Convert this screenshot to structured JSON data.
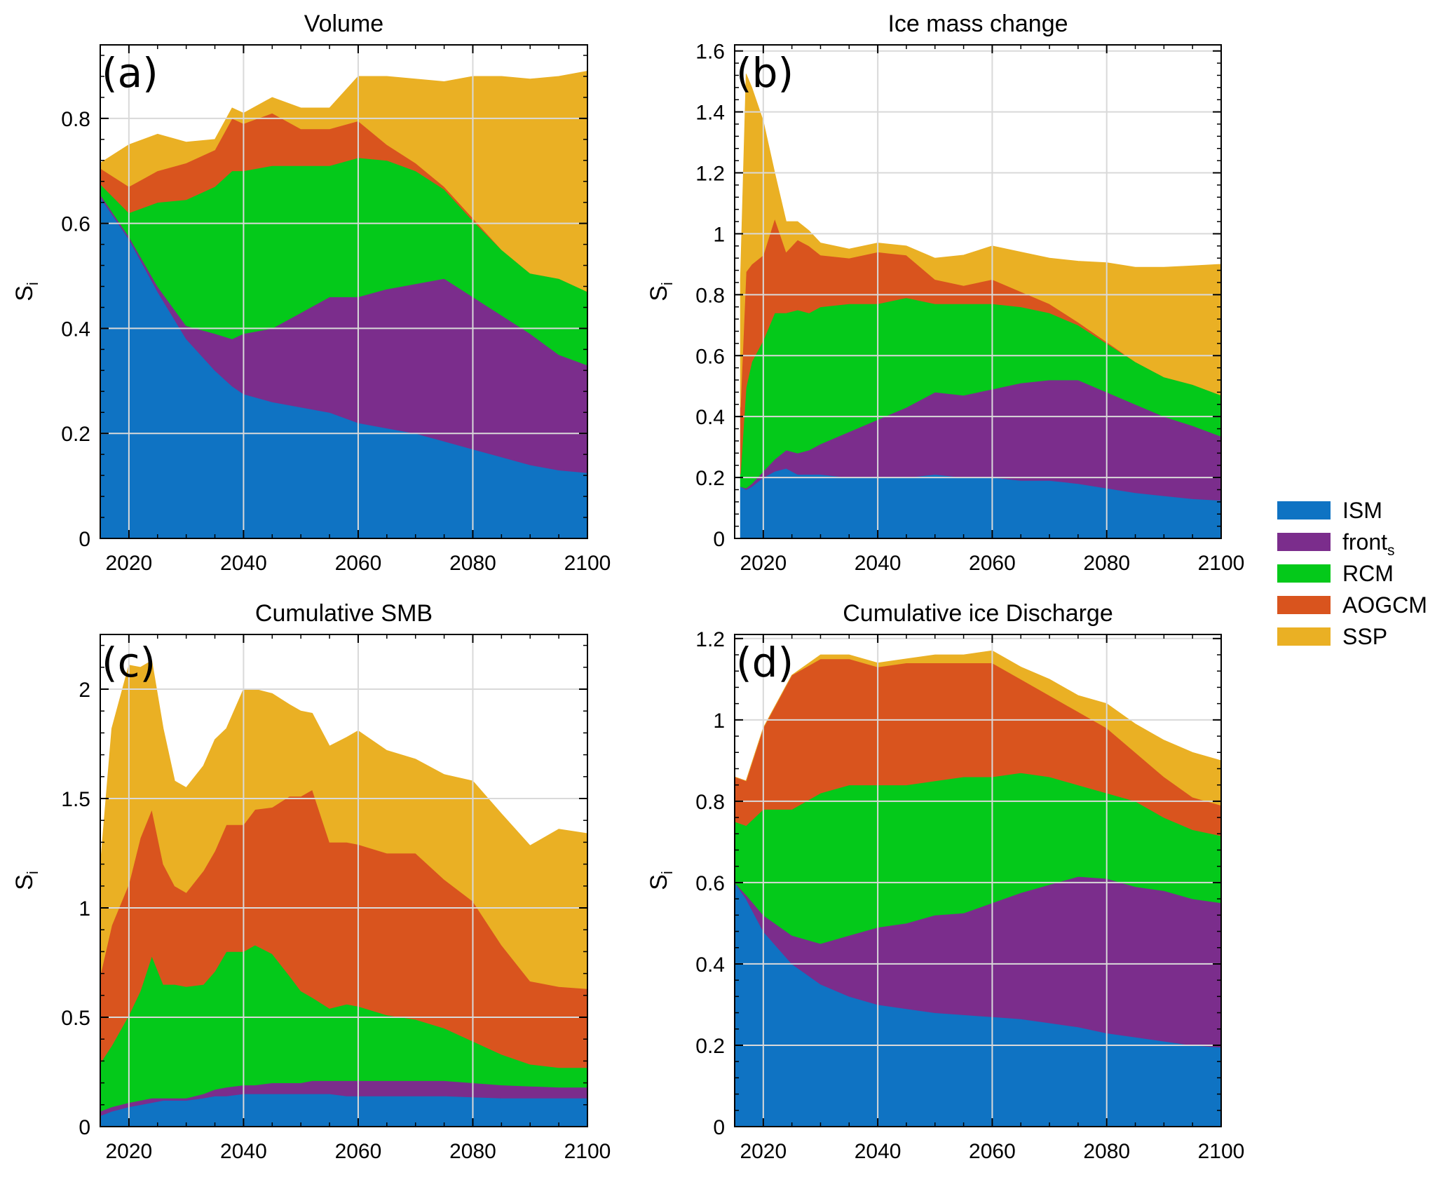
{
  "legend": {
    "items": [
      {
        "key": "ISM",
        "label": "ISM",
        "sub": "",
        "color": "#0f73c3"
      },
      {
        "key": "front",
        "label": "front",
        "sub": "s",
        "color": "#7b2d8c"
      },
      {
        "key": "RCM",
        "label": "RCM",
        "sub": "",
        "color": "#04c91a"
      },
      {
        "key": "AOGCM",
        "label": "AOGCM",
        "sub": "",
        "color": "#d9541e"
      },
      {
        "key": "SSP",
        "label": "SSP",
        "sub": "",
        "color": "#eab024"
      }
    ]
  },
  "chart_data": [
    {
      "type": "area",
      "stacked": true,
      "panel_label": "(a)",
      "title": "Volume",
      "ylabel": "S",
      "ylabel_sub": "i",
      "xlim": [
        2015,
        2100
      ],
      "ylim": [
        0,
        0.94
      ],
      "x_ticks": [
        "2020",
        "2040",
        "2060",
        "2080",
        "2100"
      ],
      "x_tick_values": [
        2020,
        2040,
        2060,
        2080,
        2100
      ],
      "y_ticks": [
        "0",
        "0.2",
        "0.4",
        "0.6",
        "0.8"
      ],
      "y_tick_values": [
        0,
        0.2,
        0.4,
        0.6,
        0.8
      ],
      "x": [
        2015,
        2020,
        2025,
        2030,
        2035,
        2038,
        2040,
        2045,
        2050,
        2055,
        2060,
        2065,
        2070,
        2075,
        2080,
        2085,
        2090,
        2095,
        2100
      ],
      "series": [
        {
          "name": "ISM",
          "values": [
            0.65,
            0.57,
            0.47,
            0.38,
            0.32,
            0.29,
            0.275,
            0.26,
            0.25,
            0.24,
            0.22,
            0.21,
            0.2,
            0.185,
            0.17,
            0.155,
            0.14,
            0.13,
            0.125
          ]
        },
        {
          "name": "front",
          "values": [
            0.005,
            0.005,
            0.01,
            0.025,
            0.07,
            0.09,
            0.115,
            0.14,
            0.18,
            0.22,
            0.24,
            0.265,
            0.285,
            0.31,
            0.29,
            0.27,
            0.25,
            0.22,
            0.205
          ]
        },
        {
          "name": "RCM",
          "values": [
            0.02,
            0.045,
            0.16,
            0.24,
            0.28,
            0.32,
            0.31,
            0.31,
            0.28,
            0.25,
            0.265,
            0.245,
            0.215,
            0.17,
            0.145,
            0.125,
            0.115,
            0.145,
            0.14
          ]
        },
        {
          "name": "AOGCM",
          "values": [
            0.03,
            0.05,
            0.06,
            0.07,
            0.07,
            0.1,
            0.09,
            0.1,
            0.07,
            0.07,
            0.07,
            0.03,
            0.015,
            0.005,
            0.005,
            0.0,
            0.0,
            0.0,
            0.0
          ]
        },
        {
          "name": "SSP",
          "values": [
            0.01,
            0.08,
            0.07,
            0.04,
            0.02,
            0.02,
            0.02,
            0.03,
            0.04,
            0.04,
            0.085,
            0.13,
            0.16,
            0.2,
            0.27,
            0.33,
            0.37,
            0.385,
            0.42
          ]
        }
      ]
    },
    {
      "type": "area",
      "stacked": true,
      "panel_label": "(b)",
      "title": "Ice mass change",
      "ylabel": "S",
      "ylabel_sub": "i",
      "xlim": [
        2015,
        2100
      ],
      "ylim": [
        0,
        1.62
      ],
      "x_ticks": [
        "2020",
        "2040",
        "2060",
        "2080",
        "2100"
      ],
      "x_tick_values": [
        2020,
        2040,
        2060,
        2080,
        2100
      ],
      "y_ticks": [
        "0",
        "0.2",
        "0.4",
        "0.6",
        "0.8",
        "1",
        "1.2",
        "1.4",
        "1.6"
      ],
      "y_tick_values": [
        0,
        0.2,
        0.4,
        0.6,
        0.8,
        1,
        1.2,
        1.4,
        1.6
      ],
      "x": [
        2016,
        2017,
        2018,
        2020,
        2022,
        2024,
        2026,
        2028,
        2030,
        2035,
        2040,
        2045,
        2050,
        2055,
        2060,
        2065,
        2070,
        2075,
        2080,
        2085,
        2090,
        2095,
        2100
      ],
      "series": [
        {
          "name": "ISM",
          "values": [
            0.17,
            0.16,
            0.17,
            0.2,
            0.22,
            0.23,
            0.21,
            0.21,
            0.21,
            0.2,
            0.2,
            0.2,
            0.21,
            0.2,
            0.2,
            0.19,
            0.19,
            0.18,
            0.165,
            0.15,
            0.14,
            0.13,
            0.125
          ]
        },
        {
          "name": "front",
          "values": [
            0.0,
            0.005,
            0.01,
            0.02,
            0.04,
            0.06,
            0.07,
            0.08,
            0.1,
            0.15,
            0.19,
            0.23,
            0.27,
            0.27,
            0.29,
            0.32,
            0.33,
            0.34,
            0.315,
            0.29,
            0.26,
            0.24,
            0.21
          ]
        },
        {
          "name": "RCM",
          "values": [
            0.04,
            0.33,
            0.4,
            0.43,
            0.48,
            0.45,
            0.47,
            0.45,
            0.45,
            0.42,
            0.38,
            0.36,
            0.29,
            0.3,
            0.28,
            0.25,
            0.22,
            0.18,
            0.16,
            0.14,
            0.13,
            0.135,
            0.135
          ]
        },
        {
          "name": "AOGCM",
          "values": [
            0.22,
            0.38,
            0.32,
            0.28,
            0.31,
            0.2,
            0.23,
            0.22,
            0.17,
            0.15,
            0.17,
            0.14,
            0.08,
            0.06,
            0.08,
            0.05,
            0.03,
            0.01,
            0.005,
            0.0,
            0.0,
            0.0,
            0.0
          ]
        },
        {
          "name": "SSP",
          "values": [
            0.42,
            0.65,
            0.58,
            0.44,
            0.15,
            0.1,
            0.06,
            0.05,
            0.04,
            0.03,
            0.03,
            0.03,
            0.07,
            0.1,
            0.11,
            0.13,
            0.15,
            0.2,
            0.26,
            0.31,
            0.36,
            0.39,
            0.43
          ]
        }
      ]
    },
    {
      "type": "area",
      "stacked": true,
      "panel_label": "(c)",
      "title": "Cumulative SMB",
      "ylabel": "S",
      "ylabel_sub": "i",
      "xlim": [
        2015,
        2100
      ],
      "ylim": [
        0,
        2.25
      ],
      "x_ticks": [
        "2020",
        "2040",
        "2060",
        "2080",
        "2100"
      ],
      "x_tick_values": [
        2020,
        2040,
        2060,
        2080,
        2100
      ],
      "y_ticks": [
        "0",
        "0.5",
        "1",
        "1.5",
        "2"
      ],
      "y_tick_values": [
        0,
        0.5,
        1,
        1.5,
        2
      ],
      "x": [
        2015,
        2017,
        2020,
        2022,
        2024,
        2026,
        2028,
        2030,
        2033,
        2035,
        2037,
        2040,
        2042,
        2045,
        2048,
        2050,
        2052,
        2055,
        2058,
        2060,
        2065,
        2070,
        2075,
        2080,
        2085,
        2090,
        2095,
        2100
      ],
      "series": [
        {
          "name": "ISM",
          "values": [
            0.05,
            0.07,
            0.09,
            0.1,
            0.11,
            0.12,
            0.12,
            0.12,
            0.13,
            0.14,
            0.14,
            0.15,
            0.15,
            0.15,
            0.15,
            0.15,
            0.15,
            0.15,
            0.14,
            0.14,
            0.14,
            0.14,
            0.14,
            0.135,
            0.13,
            0.13,
            0.13,
            0.13
          ]
        },
        {
          "name": "front",
          "values": [
            0.02,
            0.02,
            0.02,
            0.02,
            0.02,
            0.01,
            0.01,
            0.01,
            0.02,
            0.03,
            0.04,
            0.04,
            0.04,
            0.05,
            0.05,
            0.05,
            0.06,
            0.06,
            0.07,
            0.07,
            0.07,
            0.07,
            0.07,
            0.065,
            0.06,
            0.055,
            0.05,
            0.05
          ]
        },
        {
          "name": "RCM",
          "values": [
            0.22,
            0.28,
            0.4,
            0.5,
            0.65,
            0.52,
            0.52,
            0.51,
            0.5,
            0.54,
            0.62,
            0.61,
            0.64,
            0.59,
            0.49,
            0.42,
            0.38,
            0.33,
            0.35,
            0.34,
            0.3,
            0.28,
            0.24,
            0.19,
            0.14,
            0.1,
            0.09,
            0.09
          ]
        },
        {
          "name": "AOGCM",
          "values": [
            0.4,
            0.55,
            0.6,
            0.7,
            0.67,
            0.55,
            0.45,
            0.43,
            0.52,
            0.55,
            0.58,
            0.58,
            0.62,
            0.67,
            0.82,
            0.89,
            0.95,
            0.76,
            0.74,
            0.74,
            0.74,
            0.76,
            0.68,
            0.64,
            0.5,
            0.38,
            0.37,
            0.36
          ]
        },
        {
          "name": "SSP",
          "values": [
            0.5,
            0.9,
            1.0,
            0.78,
            0.68,
            0.62,
            0.48,
            0.48,
            0.48,
            0.51,
            0.44,
            0.62,
            0.55,
            0.52,
            0.42,
            0.39,
            0.35,
            0.44,
            0.48,
            0.52,
            0.47,
            0.43,
            0.48,
            0.55,
            0.6,
            0.62,
            0.72,
            0.71
          ]
        }
      ]
    },
    {
      "type": "area",
      "stacked": true,
      "panel_label": "(d)",
      "title": "Cumulative ice Discharge",
      "ylabel": "S",
      "ylabel_sub": "i",
      "xlim": [
        2015,
        2100
      ],
      "ylim": [
        0,
        1.21
      ],
      "x_ticks": [
        "2020",
        "2040",
        "2060",
        "2080",
        "2100"
      ],
      "x_tick_values": [
        2020,
        2040,
        2060,
        2080,
        2100
      ],
      "y_ticks": [
        "0",
        "0.2",
        "0.4",
        "0.6",
        "0.8",
        "1",
        "1.2"
      ],
      "y_tick_values": [
        0,
        0.2,
        0.4,
        0.6,
        0.8,
        1,
        1.2
      ],
      "x": [
        2015,
        2017,
        2020,
        2025,
        2030,
        2035,
        2040,
        2045,
        2050,
        2055,
        2060,
        2065,
        2070,
        2075,
        2080,
        2085,
        2090,
        2095,
        2100
      ],
      "series": [
        {
          "name": "ISM",
          "values": [
            0.6,
            0.56,
            0.48,
            0.4,
            0.35,
            0.32,
            0.3,
            0.29,
            0.28,
            0.275,
            0.27,
            0.265,
            0.255,
            0.245,
            0.23,
            0.22,
            0.21,
            0.2,
            0.195
          ]
        },
        {
          "name": "front",
          "values": [
            0.0,
            0.01,
            0.04,
            0.07,
            0.1,
            0.15,
            0.19,
            0.21,
            0.24,
            0.25,
            0.28,
            0.31,
            0.34,
            0.37,
            0.38,
            0.37,
            0.37,
            0.36,
            0.355
          ]
        },
        {
          "name": "RCM",
          "values": [
            0.15,
            0.17,
            0.26,
            0.31,
            0.37,
            0.37,
            0.35,
            0.34,
            0.33,
            0.335,
            0.31,
            0.295,
            0.265,
            0.225,
            0.21,
            0.21,
            0.18,
            0.17,
            0.165
          ]
        },
        {
          "name": "AOGCM",
          "values": [
            0.11,
            0.11,
            0.2,
            0.33,
            0.33,
            0.31,
            0.29,
            0.3,
            0.29,
            0.28,
            0.28,
            0.23,
            0.2,
            0.18,
            0.16,
            0.12,
            0.1,
            0.08,
            0.075
          ]
        },
        {
          "name": "SSP",
          "values": [
            0.0,
            0.0,
            0.0,
            0.0,
            0.01,
            0.01,
            0.01,
            0.01,
            0.02,
            0.02,
            0.03,
            0.03,
            0.04,
            0.04,
            0.06,
            0.07,
            0.09,
            0.11,
            0.11
          ]
        }
      ]
    }
  ]
}
